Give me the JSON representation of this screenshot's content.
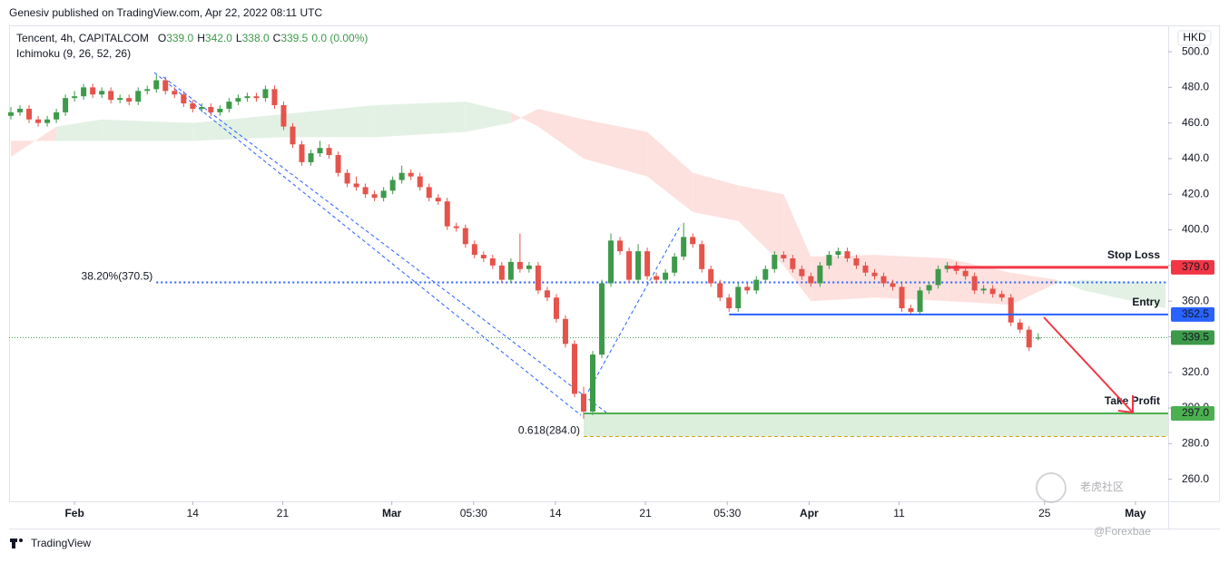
{
  "header": "Genesiv published on TradingView.com, Apr 22, 2022 08:11 UTC",
  "chart_data": {
    "type": "candlestick",
    "title": "Tencent, 4h, CAPITALCOM",
    "ohlc_legend": [
      {
        "key": "O",
        "value": "339.0"
      },
      {
        "key": "H",
        "value": "342.0"
      },
      {
        "key": "L",
        "value": "338.0"
      },
      {
        "key": "C",
        "value": "339.5"
      }
    ],
    "change": "0.0 (0.00%)",
    "indicator": "Ichimoku (9, 26, 52, 26)",
    "currency": "HKD",
    "up_color": "#3d9a4a",
    "down_color": "#e5534b",
    "xlim": [
      -0.2,
      127.3
    ],
    "ylim": [
      247.6,
      514.8
    ],
    "yticks": [
      {
        "value": 260,
        "label": "260.0"
      },
      {
        "value": 280,
        "label": "280.0"
      },
      {
        "value": 300,
        "label": "300.0"
      },
      {
        "value": 320,
        "label": "320.0"
      },
      {
        "value": 340,
        "label": "340.0"
      },
      {
        "value": 360,
        "label": "360.0"
      },
      {
        "value": 380,
        "label": "380.0"
      },
      {
        "value": 400,
        "label": "400.0"
      },
      {
        "value": 420,
        "label": "420.0"
      },
      {
        "value": 440,
        "label": "440.0"
      },
      {
        "value": 460,
        "label": "460.0"
      },
      {
        "value": 480,
        "label": "480.0"
      },
      {
        "value": 500,
        "label": "500.0"
      }
    ],
    "xticks": [
      {
        "value": 7,
        "label": "Feb"
      },
      {
        "value": 20,
        "label": "14"
      },
      {
        "value": 29.9,
        "label": "21"
      },
      {
        "value": 41.9,
        "label": "Mar"
      },
      {
        "value": 50.9,
        "label": "05:30"
      },
      {
        "value": 59.9,
        "label": "14"
      },
      {
        "value": 69.8,
        "label": "21"
      },
      {
        "value": 78.8,
        "label": "05:30"
      },
      {
        "value": 87.8,
        "label": "Apr"
      },
      {
        "value": 97.7,
        "label": "11"
      },
      {
        "value": 113.7,
        "label": "25"
      },
      {
        "value": 123.7,
        "label": "May"
      }
    ],
    "candles": [
      [
        464,
        469,
        462,
        466
      ],
      [
        466,
        470,
        464,
        468
      ],
      [
        468,
        470,
        460,
        462
      ],
      [
        462,
        464,
        458,
        460
      ],
      [
        460,
        464,
        458,
        462
      ],
      [
        462,
        468,
        460,
        466
      ],
      [
        466,
        476,
        464,
        474
      ],
      [
        474,
        478,
        472,
        475
      ],
      [
        475,
        482,
        473,
        480
      ],
      [
        480,
        482,
        474,
        476
      ],
      [
        476,
        480,
        474,
        478
      ],
      [
        478,
        480,
        471,
        473
      ],
      [
        473,
        476,
        471,
        474
      ],
      [
        474,
        476,
        470,
        472
      ],
      [
        472,
        480,
        470,
        478
      ],
      [
        478,
        481,
        476,
        479
      ],
      [
        479,
        487,
        477,
        484
      ],
      [
        484,
        486,
        476,
        478
      ],
      [
        478,
        480,
        474,
        476
      ],
      [
        476,
        478,
        469,
        471
      ],
      [
        471,
        473,
        466,
        468
      ],
      [
        468,
        471,
        466,
        469
      ],
      [
        469,
        471,
        464,
        466
      ],
      [
        466,
        470,
        464,
        468
      ],
      [
        468,
        474,
        466,
        472
      ],
      [
        472,
        476,
        470,
        474
      ],
      [
        474,
        477,
        472,
        475
      ],
      [
        475,
        477,
        472,
        474
      ],
      [
        474,
        481,
        472,
        479
      ],
      [
        479,
        481,
        468,
        470
      ],
      [
        470,
        472,
        456,
        458
      ],
      [
        458,
        460,
        446,
        448
      ],
      [
        448,
        450,
        436,
        438
      ],
      [
        438,
        445,
        436,
        443
      ],
      [
        443,
        450,
        441,
        446
      ],
      [
        446,
        448,
        440,
        442
      ],
      [
        442,
        444,
        430,
        432
      ],
      [
        432,
        434,
        424,
        426
      ],
      [
        426,
        430,
        422,
        424
      ],
      [
        424,
        426,
        418,
        420
      ],
      [
        420,
        422,
        416,
        418
      ],
      [
        418,
        424,
        416,
        422
      ],
      [
        422,
        430,
        420,
        428
      ],
      [
        428,
        436,
        426,
        432
      ],
      [
        432,
        434,
        428,
        430
      ],
      [
        430,
        432,
        422,
        424
      ],
      [
        424,
        426,
        416,
        418
      ],
      [
        418,
        420,
        414,
        416
      ],
      [
        416,
        418,
        400,
        402
      ],
      [
        402,
        404,
        399,
        401
      ],
      [
        401,
        403,
        390,
        392
      ],
      [
        392,
        394,
        384,
        386
      ],
      [
        386,
        388,
        382,
        384
      ],
      [
        384,
        386,
        378,
        380
      ],
      [
        380,
        382,
        370,
        372
      ],
      [
        372,
        384,
        370,
        382
      ],
      [
        382,
        398,
        376,
        378
      ],
      [
        378,
        382,
        376,
        380
      ],
      [
        380,
        382,
        364,
        366
      ],
      [
        366,
        368,
        360,
        362
      ],
      [
        362,
        364,
        348,
        350
      ],
      [
        350,
        352,
        334,
        336
      ],
      [
        336,
        338,
        306,
        308
      ],
      [
        308,
        312,
        294,
        298
      ],
      [
        298,
        332,
        296,
        330
      ],
      [
        330,
        372,
        328,
        370
      ],
      [
        370,
        398,
        368,
        394
      ],
      [
        394,
        396,
        386,
        388
      ],
      [
        388,
        390,
        370,
        372
      ],
      [
        372,
        392,
        370,
        388
      ],
      [
        388,
        390,
        372,
        374
      ],
      [
        374,
        376,
        370,
        372
      ],
      [
        372,
        378,
        370,
        376
      ],
      [
        376,
        387,
        374,
        385
      ],
      [
        385,
        404,
        383,
        396
      ],
      [
        396,
        398,
        390,
        392
      ],
      [
        392,
        394,
        376,
        378
      ],
      [
        378,
        380,
        368,
        370
      ],
      [
        370,
        372,
        360,
        362
      ],
      [
        362,
        364,
        354,
        356
      ],
      [
        356,
        370,
        354,
        368
      ],
      [
        368,
        370,
        364,
        366
      ],
      [
        366,
        374,
        364,
        372
      ],
      [
        372,
        380,
        370,
        378
      ],
      [
        378,
        388,
        376,
        386
      ],
      [
        386,
        388,
        382,
        384
      ],
      [
        384,
        386,
        376,
        378
      ],
      [
        378,
        380,
        372,
        374
      ],
      [
        374,
        376,
        368,
        370
      ],
      [
        370,
        382,
        368,
        380
      ],
      [
        380,
        388,
        378,
        386
      ],
      [
        386,
        390,
        384,
        388
      ],
      [
        388,
        390,
        382,
        384
      ],
      [
        384,
        386,
        378,
        380
      ],
      [
        380,
        382,
        374,
        376
      ],
      [
        376,
        378,
        372,
        374
      ],
      [
        374,
        376,
        368,
        370
      ],
      [
        370,
        372,
        366,
        368
      ],
      [
        368,
        370,
        354,
        356
      ],
      [
        356,
        358,
        352,
        354
      ],
      [
        354,
        368,
        352,
        366
      ],
      [
        366,
        371,
        364,
        369
      ],
      [
        369,
        380,
        367,
        378
      ],
      [
        378,
        382,
        376,
        380
      ],
      [
        380,
        382,
        375,
        377
      ],
      [
        377,
        379,
        372,
        374
      ],
      [
        374,
        376,
        364,
        366
      ],
      [
        366,
        369,
        364,
        367
      ],
      [
        367,
        369,
        362,
        364
      ],
      [
        364,
        366,
        360,
        362
      ],
      [
        362,
        364,
        346,
        348
      ],
      [
        348,
        350,
        342,
        344
      ],
      [
        344,
        346,
        332,
        334
      ],
      [
        339,
        342,
        338,
        339.5
      ]
    ],
    "cloud": {
      "x": [
        0,
        5,
        10,
        20,
        30,
        40,
        50,
        55,
        58,
        63,
        70,
        75,
        80,
        85,
        88,
        95,
        103,
        110,
        115,
        118,
        127
      ],
      "span_a": [
        441,
        458,
        462,
        460,
        465,
        470,
        472,
        466,
        458,
        440,
        430,
        410,
        405,
        380,
        360,
        362,
        360,
        358,
        370,
        372,
        370
      ],
      "span_b": [
        450,
        450,
        450,
        450,
        452,
        452,
        455,
        460,
        468,
        462,
        455,
        432,
        425,
        420,
        385,
        386,
        384,
        376,
        372,
        366,
        356
      ],
      "bull_color": "#e3f1e4",
      "bear_color": "#fde1df"
    },
    "levels": [
      {
        "name": "Stop Loss",
        "value": 379,
        "label": "379.0",
        "start": 103,
        "color": "#f23645"
      },
      {
        "name": "Entry",
        "value": 352.5,
        "label": "352.5",
        "start": 79,
        "color": "#2962ff"
      },
      {
        "name": "Take Profit",
        "value": 297,
        "label": "297.0",
        "start": 63,
        "color": "#4caf50"
      }
    ],
    "last_price": {
      "value": 339.5,
      "label": "339.5",
      "color": "#3d9a4a"
    },
    "fib": [
      {
        "value": 370.5,
        "label": "38.20%(370.5)",
        "start": 16,
        "color": "#2962ff"
      },
      {
        "value": 284,
        "label": "0.618(284.0)",
        "start": 63,
        "color": "#d4a017"
      }
    ]
  },
  "watermark": {
    "name": "老虎社区",
    "handle": "@Forexbae"
  },
  "footer": "TradingView"
}
